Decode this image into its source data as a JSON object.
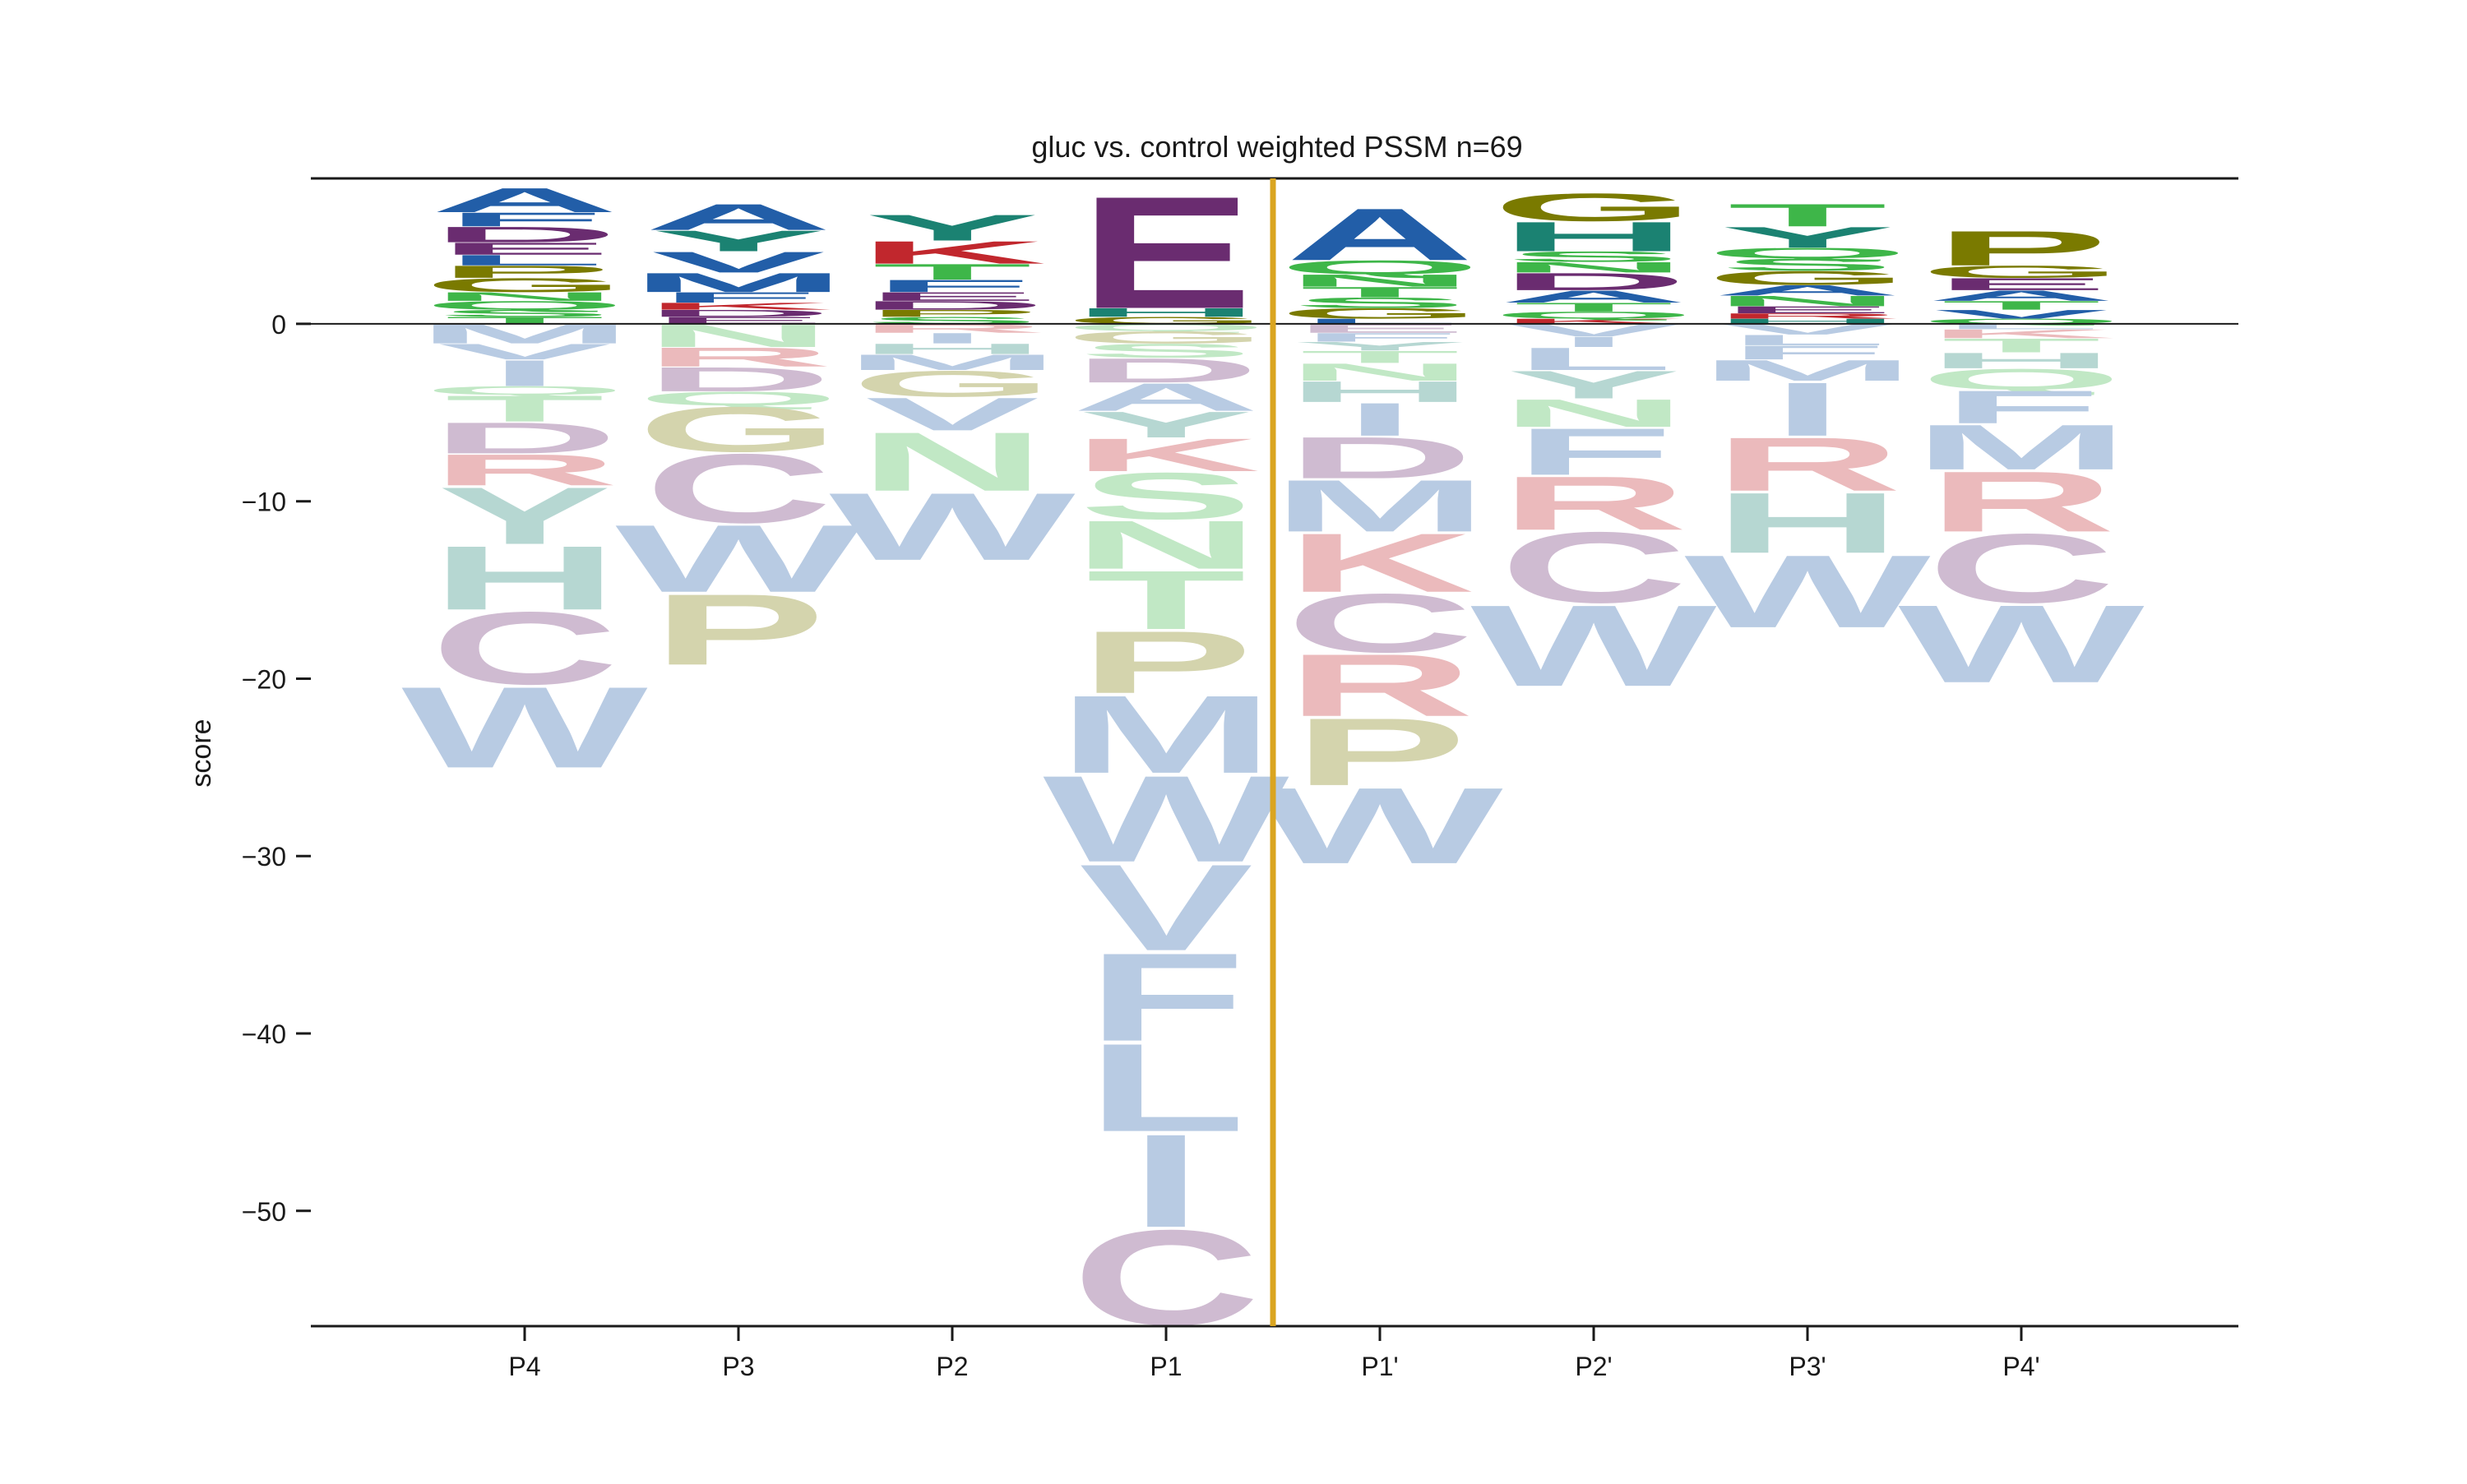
{
  "chart_data": {
    "type": "sequence-logo",
    "title": "gluc vs. control weighted PSSM n=69",
    "xlabel": "",
    "ylabel": "score",
    "ylim": [
      -56.5,
      8.2
    ],
    "yticks": [
      0,
      -10,
      -20,
      -30,
      -40,
      -50
    ],
    "ytick_labels": [
      "0",
      "−10",
      "−20",
      "−30",
      "−40",
      "−50"
    ],
    "positions": [
      "P4",
      "P3",
      "P2",
      "P1",
      "P1'",
      "P2'",
      "P3'",
      "P4'"
    ],
    "cleavage_site_after": "P1",
    "zero_line": true,
    "grid": false,
    "colors": {
      "text": "#1a1a1a",
      "axis": "#1a1a1a",
      "cleavage_line": "#DAA520",
      "aa": {
        "A": "#225EA8",
        "B": "#225EA8",
        "M": "#225EA8",
        "F": "#225EA8",
        "W": "#225EA8",
        "V": "#225EA8",
        "L": "#225EA8",
        "I": "#225EA8",
        "C": "#6A2C70",
        "D": "#6A2C70",
        "E": "#6A2C70",
        "K": "#C1272D",
        "R": "#C1272D",
        "G": "#7A7A00",
        "P": "#7A7A00",
        "H": "#1B8272",
        "Y": "#1B8272",
        "S": "#3EB649",
        "N": "#3EB649",
        "T": "#3EB649",
        "Q": "#3EB649"
      }
    },
    "letters": [
      {
        "position": "P4",
        "positive": [
          [
            "T",
            0.4
          ],
          [
            "S",
            0.4
          ],
          [
            "Q",
            0.5
          ],
          [
            "N",
            0.5
          ],
          [
            "G",
            0.8
          ],
          [
            "P",
            0.7
          ],
          [
            "L",
            0.6
          ],
          [
            "E",
            0.7
          ],
          [
            "D",
            0.9
          ],
          [
            "F",
            0.8
          ],
          [
            "A",
            1.4
          ]
        ],
        "negative": [
          [
            "M",
            1.1
          ],
          [
            "V",
            0.9
          ],
          [
            "I",
            1.5
          ],
          [
            "Q",
            0.5
          ],
          [
            "T",
            1.5
          ],
          [
            "D",
            1.8
          ],
          [
            "R",
            1.8
          ],
          [
            "Y",
            3.3
          ],
          [
            "H",
            3.7
          ],
          [
            "C",
            4.2
          ],
          [
            "W",
            4.7
          ]
        ]
      },
      {
        "position": "P3",
        "positive": [
          [
            "E",
            0.4
          ],
          [
            "D",
            0.4
          ],
          [
            "K",
            0.4
          ],
          [
            "F",
            0.6
          ],
          [
            "M",
            1.1
          ],
          [
            "V",
            1.2
          ],
          [
            "Y",
            1.2
          ],
          [
            "A",
            1.5
          ]
        ],
        "negative": [
          [
            "N",
            1.3
          ],
          [
            "R",
            1.1
          ],
          [
            "D",
            1.4
          ],
          [
            "Q",
            0.8
          ],
          [
            "G",
            2.6
          ],
          [
            "C",
            4.0
          ],
          [
            "W",
            3.9
          ],
          [
            "P",
            4.1
          ]
        ]
      },
      {
        "position": "P2",
        "positive": [
          [
            "S",
            0.4
          ],
          [
            "P",
            0.4
          ],
          [
            "D",
            0.5
          ],
          [
            "E",
            0.5
          ],
          [
            "F",
            0.7
          ],
          [
            "T",
            0.9
          ],
          [
            "K",
            1.3
          ],
          [
            "Y",
            1.5
          ]
        ],
        "negative": [
          [
            "R",
            0.5
          ],
          [
            "I",
            0.6
          ],
          [
            "H",
            0.6
          ],
          [
            "M",
            0.9
          ],
          [
            "G",
            1.5
          ],
          [
            "V",
            1.9
          ],
          [
            "N",
            3.4
          ],
          [
            "W",
            3.9
          ]
        ]
      },
      {
        "position": "P1",
        "positive": [
          [
            "G",
            0.4
          ],
          [
            "H",
            0.5
          ],
          [
            "E",
            6.5
          ]
        ],
        "negative": [
          [
            "Q",
            0.4
          ],
          [
            "G",
            0.7
          ],
          [
            "S",
            0.8
          ],
          [
            "D",
            1.4
          ],
          [
            "A",
            1.6
          ],
          [
            "Y",
            1.5
          ],
          [
            "K",
            1.9
          ],
          [
            "S",
            2.7
          ],
          [
            "N",
            2.8
          ],
          [
            "T",
            3.4
          ],
          [
            "P",
            3.6
          ],
          [
            "M",
            4.5
          ],
          [
            "W",
            5.0
          ],
          [
            "V",
            5.0
          ],
          [
            "F",
            5.1
          ],
          [
            "L",
            5.1
          ],
          [
            "I",
            5.4
          ],
          [
            "C",
            5.5
          ]
        ]
      },
      {
        "position": "P1'",
        "positive": [
          [
            "L",
            0.3
          ],
          [
            "G",
            0.6
          ],
          [
            "S",
            0.6
          ],
          [
            "T",
            0.6
          ],
          [
            "N",
            0.7
          ],
          [
            "Q",
            0.8
          ],
          [
            "A",
            3.0
          ]
        ],
        "negative": [
          [
            "E",
            0.5
          ],
          [
            "F",
            0.5
          ],
          [
            "Y",
            0.5
          ],
          [
            "T",
            0.7
          ],
          [
            "N",
            1.0
          ],
          [
            "H",
            1.2
          ],
          [
            "I",
            1.9
          ],
          [
            "D",
            2.4
          ],
          [
            "M",
            3.0
          ],
          [
            "K",
            3.4
          ],
          [
            "C",
            3.4
          ],
          [
            "R",
            3.6
          ],
          [
            "P",
            3.9
          ],
          [
            "W",
            4.4
          ]
        ]
      },
      {
        "position": "P2'",
        "positive": [
          [
            "K",
            0.3
          ],
          [
            "Q",
            0.4
          ],
          [
            "T",
            0.5
          ],
          [
            "A",
            0.7
          ],
          [
            "D",
            1.0
          ],
          [
            "N",
            0.6
          ],
          [
            "S",
            0.6
          ],
          [
            "H",
            1.7
          ],
          [
            "G",
            1.6
          ]
        ],
        "negative": [
          [
            "V",
            0.7
          ],
          [
            "I",
            0.6
          ],
          [
            "L",
            1.3
          ],
          [
            "Y",
            1.6
          ],
          [
            "N",
            1.6
          ],
          [
            "F",
            2.7
          ],
          [
            "R",
            3.1
          ],
          [
            "C",
            4.1
          ],
          [
            "W",
            4.7
          ]
        ]
      },
      {
        "position": "P3'",
        "positive": [
          [
            "H",
            0.3
          ],
          [
            "R",
            0.3
          ],
          [
            "E",
            0.4
          ],
          [
            "N",
            0.6
          ],
          [
            "A",
            0.6
          ],
          [
            "G",
            0.8
          ],
          [
            "S",
            0.7
          ],
          [
            "Q",
            0.6
          ],
          [
            "Y",
            1.2
          ],
          [
            "T",
            1.3
          ]
        ],
        "negative": [
          [
            "V",
            0.6
          ],
          [
            "L",
            0.6
          ],
          [
            "F",
            0.8
          ],
          [
            "M",
            1.2
          ],
          [
            "I",
            3.1
          ],
          [
            "R",
            3.1
          ],
          [
            "H",
            3.5
          ],
          [
            "W",
            4.2
          ]
        ]
      },
      {
        "position": "P4'",
        "positive": [
          [
            "Q",
            0.3
          ],
          [
            "V",
            0.5
          ],
          [
            "T",
            0.5
          ],
          [
            "A",
            0.6
          ],
          [
            "E",
            0.7
          ],
          [
            "G",
            0.7
          ],
          [
            "P",
            2.0
          ]
        ],
        "negative": [
          [
            "L",
            0.3
          ],
          [
            "K",
            0.5
          ],
          [
            "T",
            0.8
          ],
          [
            "H",
            0.9
          ],
          [
            "Q",
            1.2
          ],
          [
            "F",
            1.9
          ],
          [
            "M",
            2.6
          ],
          [
            "R",
            3.5
          ],
          [
            "C",
            4.0
          ],
          [
            "W",
            4.5
          ]
        ]
      }
    ]
  }
}
